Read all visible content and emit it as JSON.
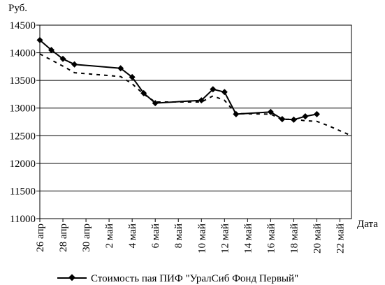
{
  "chart_data": {
    "type": "line",
    "ylabel": "Руб.",
    "xlabel": "Дата",
    "ylim": [
      11000,
      14500
    ],
    "yticks": [
      11000,
      11500,
      12000,
      12500,
      13000,
      13500,
      14000,
      14500
    ],
    "x_range": [
      0,
      27
    ],
    "xticks": [
      {
        "x": 0,
        "label": "26 апр"
      },
      {
        "x": 2,
        "label": "28 апр"
      },
      {
        "x": 4,
        "label": "30 апр"
      },
      {
        "x": 6,
        "label": "2 май"
      },
      {
        "x": 8,
        "label": "4 май"
      },
      {
        "x": 10,
        "label": "6 май"
      },
      {
        "x": 12,
        "label": "8 май"
      },
      {
        "x": 14,
        "label": "10 май"
      },
      {
        "x": 16,
        "label": "12 май"
      },
      {
        "x": 18,
        "label": "14 май"
      },
      {
        "x": 20,
        "label": "16 май"
      },
      {
        "x": 22,
        "label": "18 май"
      },
      {
        "x": 24,
        "label": "20 май"
      },
      {
        "x": 26,
        "label": "22 май"
      }
    ],
    "grid": "horizontal",
    "legend": "bottom",
    "series": [
      {
        "name": "Стоимость пая ПИФ \"УралСиб Фонд Первый\"",
        "style": "solid-diamond",
        "color": "#000000",
        "x": [
          0,
          1,
          2,
          3,
          7,
          8,
          9,
          10,
          14,
          15,
          16,
          17,
          20,
          21,
          22,
          23,
          24
        ],
        "y": [
          14230,
          14050,
          13890,
          13790,
          13720,
          13560,
          13270,
          13090,
          13140,
          13340,
          13290,
          12890,
          12930,
          12800,
          12790,
          12850,
          12890
        ]
      },
      {
        "name": "",
        "style": "dashed",
        "color": "#000000",
        "x": [
          0,
          1,
          2,
          3,
          7,
          8,
          9,
          10,
          14,
          15,
          16,
          17,
          20,
          21,
          22,
          23,
          24,
          25,
          26,
          27
        ],
        "y": [
          13980,
          13870,
          13760,
          13640,
          13570,
          13440,
          13250,
          13110,
          13110,
          13220,
          13140,
          12900,
          12890,
          12790,
          12800,
          12770,
          12760,
          12680,
          12590,
          12500
        ]
      }
    ]
  }
}
